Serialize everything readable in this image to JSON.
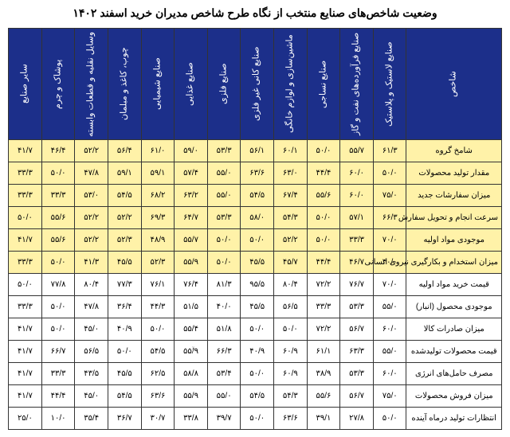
{
  "title": "وضعیت شاخص‌های صنایع منتخب از نگاه طرح شاخص مدیران خرید اسفند ۱۴۰۲",
  "header_bg": "#1c2f8a",
  "header_fg": "#ffffff",
  "yellow_bg": "#fff2a8",
  "columns": [
    "شاخص",
    "صنایع لاستیک و پلاستیک",
    "صنایع فرآورده‌های نفت و گاز",
    "صنایع نساجی",
    "ماشین‌سازی و لوازم خانگی",
    "صنایع کانی غیر فلزی",
    "صنایع فلزی",
    "صنایع غذایی",
    "صنایع شیمیایی",
    "چوب، کاغذ و مبلمان",
    "وسایل نقلیه و قطعات وابسته",
    "پوشاک و چرم",
    "سایر صنایع"
  ],
  "rows": [
    {
      "label": "شامخ گروه",
      "highlight": true,
      "values": [
        "۶۱/۳",
        "۵۵/۷",
        "۵۰/۰",
        "۶۰/۱",
        "۵۶/۱",
        "۵۳/۳",
        "۵۹/۰",
        "۶۱/۰",
        "۵۶/۴",
        "۵۲/۲",
        "۴۶/۴",
        "۴۱/۷"
      ]
    },
    {
      "label": "مقدار تولید محصولات",
      "highlight": true,
      "values": [
        "۵۰/۰",
        "۶۰/۰",
        "۴۴/۴",
        "۶۳/۰",
        "۶۳/۶",
        "۵۵/۰",
        "۵۷/۴",
        "۵۹/۱",
        "۵۹/۱",
        "۴۷/۸",
        "۵۰/۰",
        "۳۳/۳"
      ]
    },
    {
      "label": "میزان سفارشات جدید",
      "highlight": true,
      "values": [
        "۷۵/۰",
        "۶۰/۰",
        "۵۵/۶",
        "۶۷/۴",
        "۵۴/۵",
        "۵۵/۰",
        "۶۳/۲",
        "۶۸/۲",
        "۵۴/۵",
        "۵۳/۰",
        "۳۳/۳",
        "۳۳/۳"
      ]
    },
    {
      "label": "سرعت انجام و تحویل سفارش",
      "highlight": true,
      "values": [
        "۶۶/۳",
        "۵۷/۱",
        "۵۰/۰",
        "۵۴/۳",
        "۵۸/۰",
        "۵۳/۳",
        "۶۴/۷",
        "۶۹/۳",
        "۵۲/۲",
        "۵۲/۲",
        "۵۵/۶",
        "۵۰/۰"
      ]
    },
    {
      "label": "موجودی مواد اولیه",
      "highlight": true,
      "values": [
        "۷۰/۰",
        "۳۳/۳",
        "۵۰/۰",
        "۵۲/۲",
        "۵۰/۰",
        "۵۰/۰",
        "۵۵/۷",
        "۴۸/۹",
        "۵۲/۳",
        "۵۲/۲",
        "۵۵/۶",
        "۴۱/۷"
      ]
    },
    {
      "label": "میزان استخدام و بکارگیری نیروی انسانی",
      "highlight": true,
      "values": [
        "۴۰/۰",
        "۴۶/۷",
        "۴۴/۴",
        "۴۵/۷",
        "۴۵/۵",
        "۵۰/۰",
        "۵۵/۹",
        "۵۲/۳",
        "۴۵/۵",
        "۴۱/۳",
        "۵۰/۰",
        "۳۳/۳"
      ]
    },
    {
      "label": "قیمت خرید مواد اولیه",
      "highlight": false,
      "values": [
        "۷۰/۰",
        "۷۶/۷",
        "۷۲/۲",
        "۸۰/۴",
        "۹۵/۵",
        "۸۱/۳",
        "۷۶/۴",
        "۷۶/۱",
        "۷۷/۳",
        "۸۰/۴",
        "۷۷/۸",
        "۵۰/۰"
      ]
    },
    {
      "label": "موجودی محصول (انبار)",
      "highlight": false,
      "values": [
        "۵۵/۰",
        "۵۳/۳",
        "۳۳/۳",
        "۵۶/۵",
        "۴۵/۵",
        "۴۰/۰",
        "۵۱/۵",
        "۴۴/۳",
        "۳۶/۴",
        "۴۷/۸",
        "۵۰/۰",
        "۳۳/۳"
      ]
    },
    {
      "label": "میزان صادرات کالا",
      "highlight": false,
      "values": [
        "۶۰/۰",
        "۵۶/۷",
        "۷۲/۲",
        "۵۰/۰",
        "۵۰/۰",
        "۵۱/۸",
        "۵۵/۴",
        "۵۰/۰",
        "۴۰/۹",
        "۴۵/۰",
        "۵۰/۰",
        "۴۱/۷"
      ]
    },
    {
      "label": "قیمت محصولات تولیدشده",
      "highlight": false,
      "values": [
        "۵۵/۰",
        "۶۳/۳",
        "۶۱/۱",
        "۶۰/۹",
        "۴۰/۹",
        "۶۶/۳",
        "۵۵/ۙ۹",
        "۵۴/۵",
        "۵۰/۰",
        "۵۶/۵",
        "۶۶/۷",
        "۴۱/۷"
      ]
    },
    {
      "label": "مصرف حامل‌های انرژی",
      "highlight": false,
      "values": [
        "۶۰/۰",
        "۵۳/۳",
        "۳۸/۹",
        "۶۰/۹",
        "۵۰/۰",
        "۵۳/۴",
        "۵۸/۸",
        "۶۲/۵",
        "۴۵/۵",
        "۴۳/۵",
        "۳۳/۳",
        "۴۱/۷"
      ]
    },
    {
      "label": "میزان فروش محصولات",
      "highlight": false,
      "values": [
        "۷۵/۰",
        "۵۶/۷",
        "۵۵/۶",
        "۵۴/۳",
        "۵۴/۵",
        "۵۵/۰",
        "۵۵/۹",
        "۶۳/۶",
        "۵۴/۵",
        "۴۵/۰",
        "۴۴/۴",
        "۴۱/۷"
      ]
    },
    {
      "label": "انتظارات تولید درماه آینده",
      "highlight": false,
      "values": [
        "۵۰/۰",
        "۲۷/۸",
        "۳۹/۱",
        "۶۳/۶",
        "۵۰/۰",
        "۳۹/۷",
        "۳۳/۸",
        "۳۰/۷",
        "۳۶/۷",
        "۳۵/۴",
        "۱۰/۰",
        "۲۵/۰"
      ]
    }
  ]
}
